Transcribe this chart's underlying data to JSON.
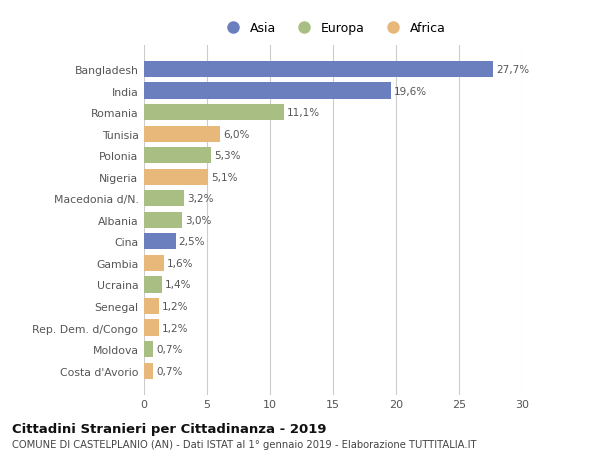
{
  "countries": [
    "Bangladesh",
    "India",
    "Romania",
    "Tunisia",
    "Polonia",
    "Nigeria",
    "Macedonia d/N.",
    "Albania",
    "Cina",
    "Gambia",
    "Ucraina",
    "Senegal",
    "Rep. Dem. d/Congo",
    "Moldova",
    "Costa d'Avorio"
  ],
  "values": [
    27.7,
    19.6,
    11.1,
    6.0,
    5.3,
    5.1,
    3.2,
    3.0,
    2.5,
    1.6,
    1.4,
    1.2,
    1.2,
    0.7,
    0.7
  ],
  "labels": [
    "27,7%",
    "19,6%",
    "11,1%",
    "6,0%",
    "5,3%",
    "5,1%",
    "3,2%",
    "3,0%",
    "2,5%",
    "1,6%",
    "1,4%",
    "1,2%",
    "1,2%",
    "0,7%",
    "0,7%"
  ],
  "continents": [
    "Asia",
    "Asia",
    "Europa",
    "Africa",
    "Europa",
    "Africa",
    "Europa",
    "Europa",
    "Asia",
    "Africa",
    "Europa",
    "Africa",
    "Africa",
    "Europa",
    "Africa"
  ],
  "colors": {
    "Asia": "#6B7FBF",
    "Europa": "#A8BE82",
    "Africa": "#E8B87A"
  },
  "legend_labels": [
    "Asia",
    "Europa",
    "Africa"
  ],
  "title": "Cittadini Stranieri per Cittadinanza - 2019",
  "subtitle": "COMUNE DI CASTELPLANIO (AN) - Dati ISTAT al 1° gennaio 2019 - Elaborazione TUTTITALIA.IT",
  "xlim": [
    0,
    30
  ],
  "xticks": [
    0,
    5,
    10,
    15,
    20,
    25,
    30
  ],
  "bg_color": "#ffffff",
  "grid_color": "#cccccc"
}
